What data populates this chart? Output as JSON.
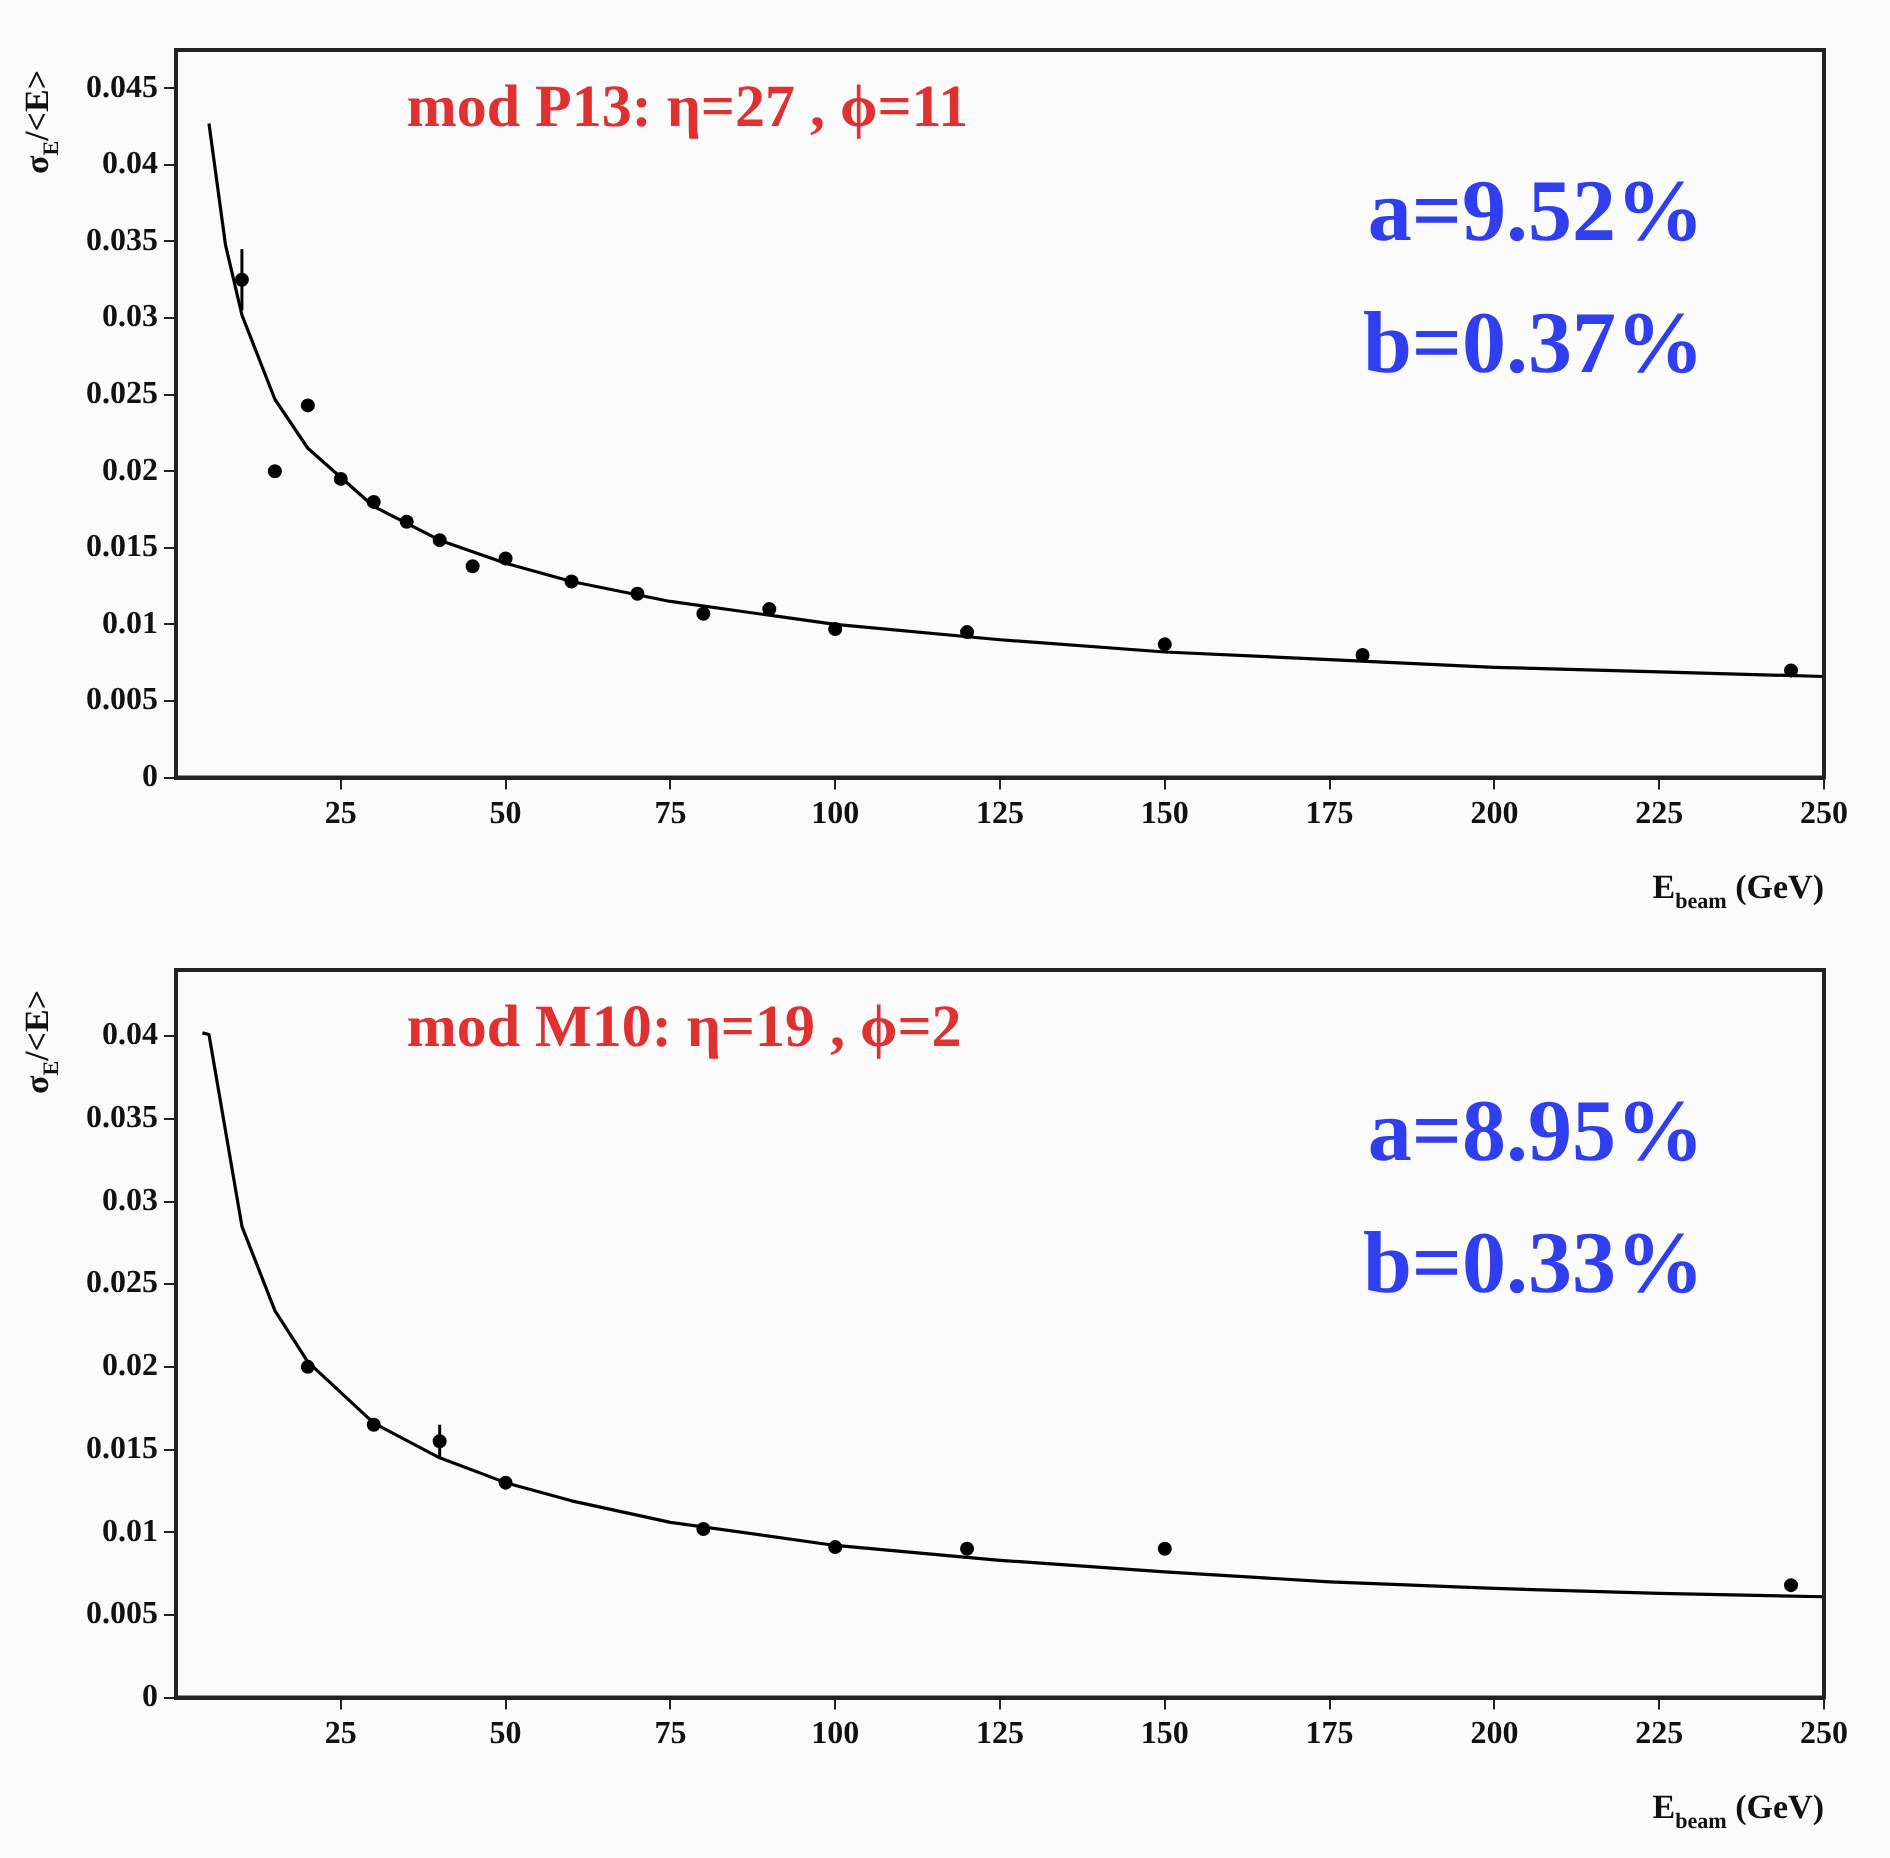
{
  "chart_data": [
    {
      "type": "scatter",
      "title": "mod P13: η=27 , ϕ=11",
      "xlabel": "E$_{beam}$ (GeV)",
      "ylabel": "σ$_{E}$/<E>",
      "annotations": [
        "a=9.52%",
        "b=0.37%"
      ],
      "xlim": [
        0,
        250
      ],
      "ylim": [
        0,
        0.0475
      ],
      "xticks": [
        25,
        50,
        75,
        100,
        125,
        150,
        175,
        200,
        225,
        250
      ],
      "yticks": [
        0,
        0.005,
        0.01,
        0.015,
        0.02,
        0.025,
        0.03,
        0.035,
        0.04,
        0.045
      ],
      "legend": false,
      "grid": false,
      "series": [
        {
          "marker": "circle",
          "color": "#000000",
          "x": [
            10,
            15,
            20,
            25,
            30,
            35,
            40,
            45,
            50,
            60,
            70,
            80,
            90,
            100,
            120,
            150,
            180,
            245
          ],
          "values": [
            0.0325,
            0.02,
            0.0243,
            0.0195,
            0.018,
            0.0167,
            0.0155,
            0.0138,
            0.0143,
            0.0128,
            0.012,
            0.0107,
            0.011,
            0.0097,
            0.0095,
            0.0087,
            0.008,
            0.007
          ],
          "errors": [
            0.002,
            null,
            null,
            null,
            null,
            null,
            null,
            null,
            null,
            null,
            null,
            null,
            null,
            null,
            null,
            null,
            null,
            null
          ]
        },
        {
          "type": "line",
          "color": "#000000",
          "x": [
            5,
            7.5,
            10,
            15,
            20,
            30,
            40,
            50,
            60,
            75,
            100,
            125,
            150,
            175,
            200,
            225,
            250
          ],
          "values": [
            0.0427,
            0.0348,
            0.0302,
            0.0247,
            0.0215,
            0.0177,
            0.0155,
            0.014,
            0.0128,
            0.0115,
            0.01,
            0.009,
            0.0082,
            0.0077,
            0.0072,
            0.0069,
            0.0066
          ]
        }
      ]
    },
    {
      "type": "scatter",
      "title": "mod M10: η=19 , ϕ=2",
      "xlabel": "E$_{beam}$ (GeV)",
      "ylabel": "σ$_{E}$/<E>",
      "annotations": [
        "a=8.95%",
        "b=0.33%"
      ],
      "xlim": [
        0,
        250
      ],
      "ylim": [
        0,
        0.044
      ],
      "xticks": [
        25,
        50,
        75,
        100,
        125,
        150,
        175,
        200,
        225,
        250
      ],
      "yticks": [
        0,
        0.005,
        0.01,
        0.015,
        0.02,
        0.025,
        0.03,
        0.035,
        0.04
      ],
      "legend": false,
      "grid": false,
      "series": [
        {
          "marker": "circle",
          "color": "#000000",
          "x": [
            20,
            30,
            40,
            50,
            80,
            100,
            120,
            150,
            245
          ],
          "values": [
            0.02,
            0.0165,
            0.0155,
            0.013,
            0.0102,
            0.0091,
            0.009,
            0.009,
            0.0068
          ],
          "errors": [
            null,
            null,
            0.001,
            null,
            null,
            null,
            null,
            null,
            null
          ]
        },
        {
          "type": "line",
          "color": "#000000",
          "x": [
            4,
            5,
            10,
            15,
            20,
            30,
            40,
            50,
            60,
            75,
            100,
            125,
            150,
            175,
            200,
            225,
            250
          ],
          "values": [
            0.0402,
            0.0401,
            0.0285,
            0.0234,
            0.0203,
            0.0166,
            0.0145,
            0.013,
            0.0119,
            0.0106,
            0.0092,
            0.0083,
            0.0076,
            0.007,
            0.0066,
            0.0063,
            0.0061
          ]
        }
      ]
    }
  ]
}
